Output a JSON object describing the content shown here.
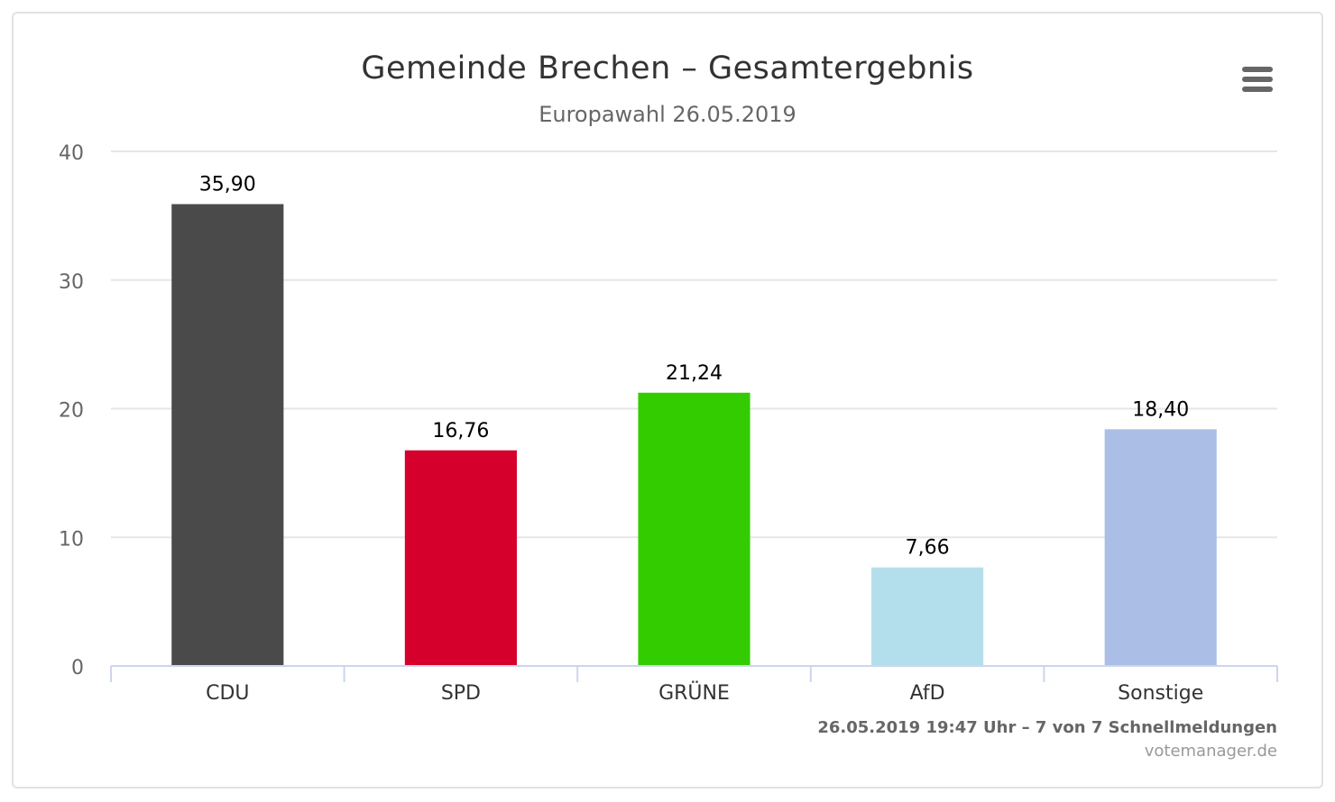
{
  "chart_data": {
    "type": "bar",
    "title": "Gemeinde Brechen – Gesamtergebnis",
    "subtitle": "Europawahl 26.05.2019",
    "categories": [
      "CDU",
      "SPD",
      "GRÜNE",
      "AfD",
      "Sonstige"
    ],
    "values": [
      35.9,
      16.76,
      21.24,
      7.66,
      18.4
    ],
    "data_labels": [
      "35,90",
      "16,76",
      "21,24",
      "7,66",
      "18,40"
    ],
    "colors": [
      "#4a4a4a",
      "#d5002b",
      "#33cc00",
      "#b3dfec",
      "#abbfe6"
    ],
    "xlabel": "",
    "ylabel": "",
    "ylim": [
      0,
      40
    ],
    "yticks": [
      0,
      10,
      20,
      30,
      40
    ],
    "grid": true,
    "legend": "none"
  },
  "credits": {
    "status": "26.05.2019 19:47 Uhr – 7 von 7 Schnellmeldungen",
    "site": "votemanager.de"
  },
  "menu": {
    "icon": "hamburger-menu-icon"
  }
}
